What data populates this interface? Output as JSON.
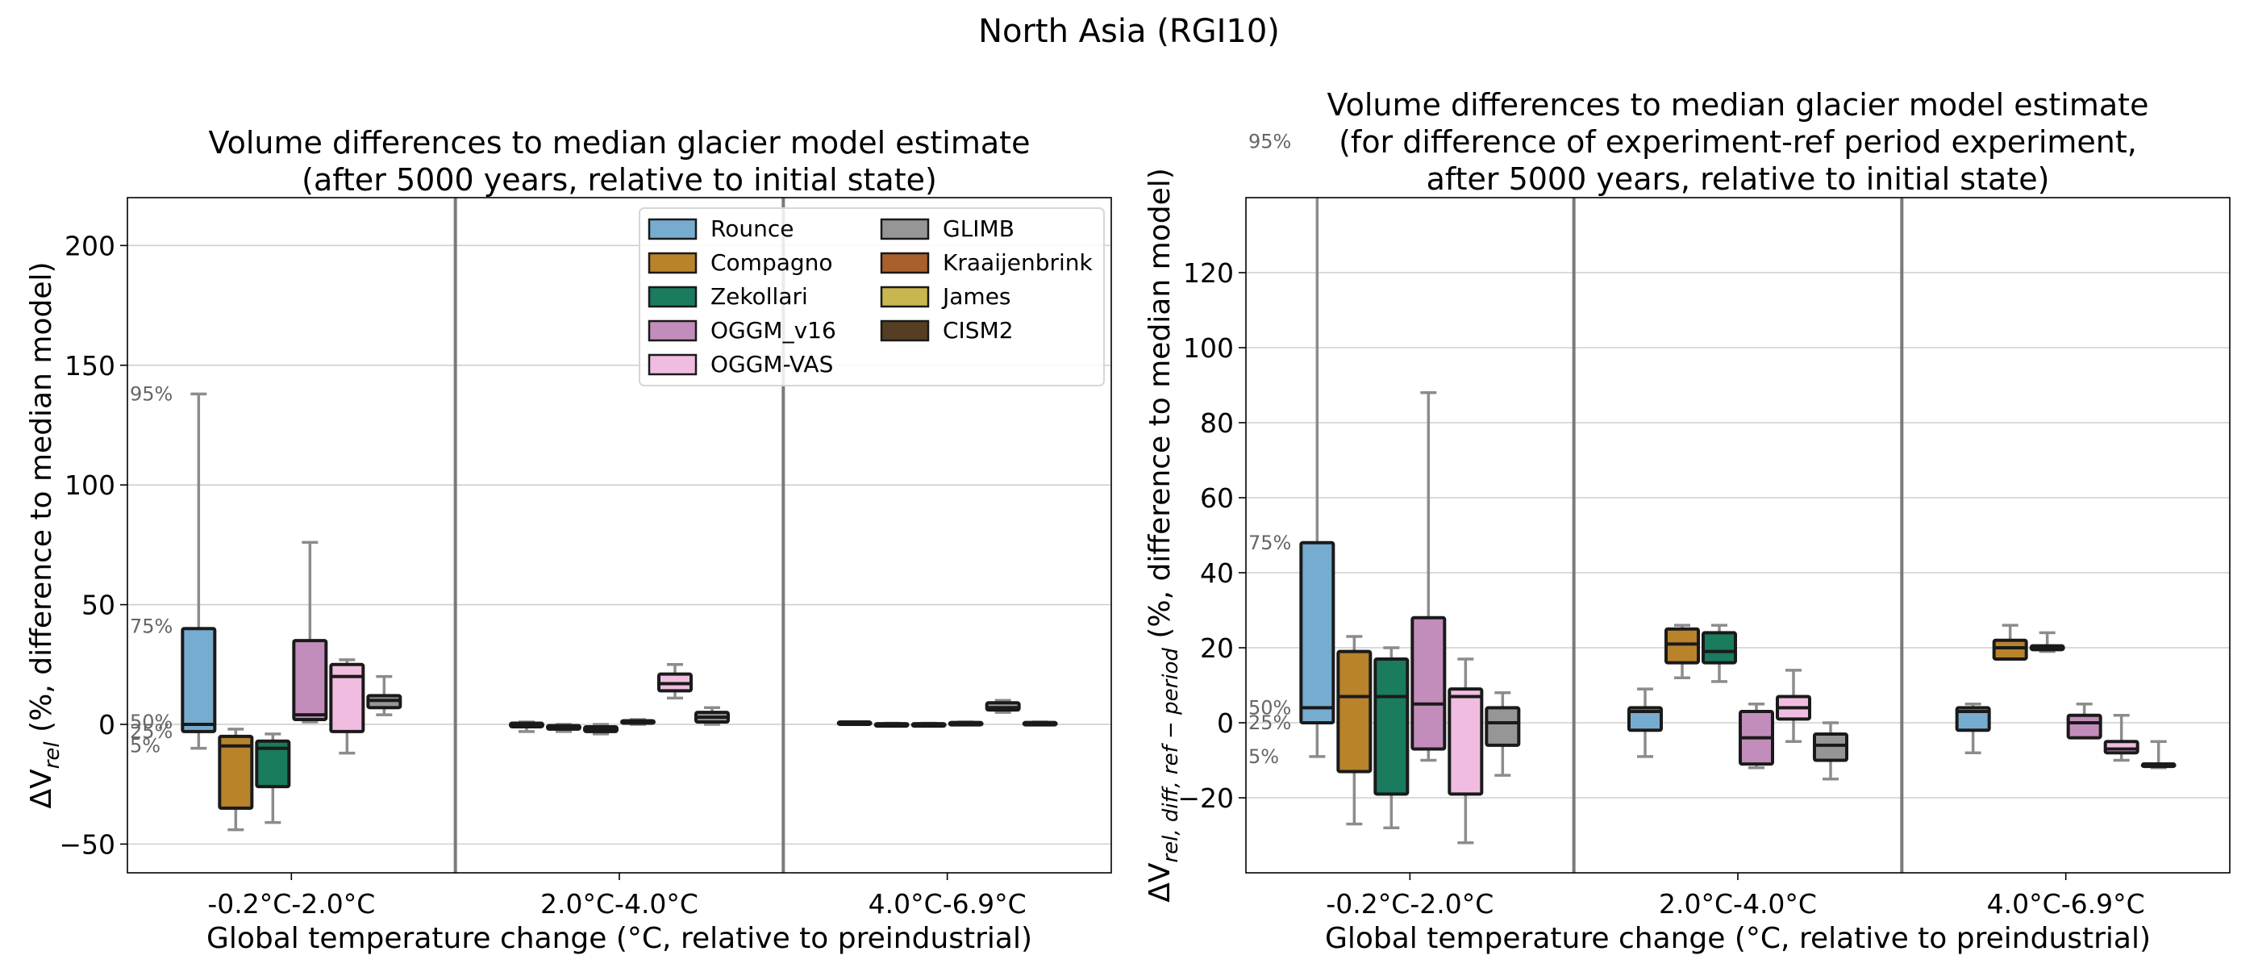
{
  "figure": {
    "suptitle": "North Asia (RGI10)"
  },
  "legend": [
    {
      "name": "Rounce",
      "color": "#76acd0"
    },
    {
      "name": "Compagno",
      "color": "#b8832b"
    },
    {
      "name": "Zekollari",
      "color": "#1a7b5e"
    },
    {
      "name": "OGGM_v16",
      "color": "#c28dbb"
    },
    {
      "name": "OGGM-VAS",
      "color": "#f0bde0"
    },
    {
      "name": "GLIMB",
      "color": "#969696"
    },
    {
      "name": "Kraaijenbrink",
      "color": "#a9602c"
    },
    {
      "name": "James",
      "color": "#c8b74f"
    },
    {
      "name": "CISM2",
      "color": "#553e23"
    }
  ],
  "chart_data": [
    {
      "type": "box",
      "title": "Volume differences to median glacier model estimate\n(after 5000 years, relative to initial state)",
      "xlabel": "Global temperature change (°C, relative to preindustrial)",
      "ylabel_main": "ΔV",
      "ylabel_sub": "rel",
      "ylabel_rest": " (%, difference to median model)",
      "ylim": [
        -62,
        220
      ],
      "yticks": [
        -50,
        0,
        50,
        100,
        150,
        200
      ],
      "grid": "y",
      "categories": [
        "-0.2°C-2.0°C",
        "2.0°C-4.0°C",
        "4.0°C-6.9°C"
      ],
      "percentile_labels": [
        {
          "text": "95%",
          "y": 138
        },
        {
          "text": "75%",
          "y": 41
        },
        {
          "text": "50%",
          "y": 1
        },
        {
          "text": "25%",
          "y": -3
        },
        {
          "text": "5%",
          "y": -9
        }
      ],
      "groups": [
        {
          "category": "-0.2°C-2.0°C",
          "boxes": [
            {
              "model": "Rounce",
              "whislo": -10,
              "q1": -3,
              "med": 0,
              "q3": 40,
              "whishi": 138
            },
            {
              "model": "Compagno",
              "whislo": -44,
              "q1": -35,
              "med": -9,
              "q3": -5,
              "whishi": -2
            },
            {
              "model": "Zekollari",
              "whislo": -41,
              "q1": -26,
              "med": -10,
              "q3": -7,
              "whishi": -4
            },
            {
              "model": "OGGM_v16",
              "whislo": 1,
              "q1": 2,
              "med": 4,
              "q3": 35,
              "whishi": 76
            },
            {
              "model": "OGGM-VAS",
              "whislo": -12,
              "q1": -3,
              "med": 20,
              "q3": 25,
              "whishi": 27
            },
            {
              "model": "GLIMB",
              "whislo": 4,
              "q1": 7,
              "med": 10,
              "q3": 12,
              "whishi": 20
            }
          ]
        },
        {
          "category": "2.0°C-4.0°C",
          "boxes": [
            {
              "model": "Rounce",
              "whislo": -3,
              "q1": -1,
              "med": 0,
              "q3": 0.5,
              "whishi": 1
            },
            {
              "model": "Compagno",
              "whislo": -3,
              "q1": -2,
              "med": -1,
              "q3": -0.5,
              "whishi": 0
            },
            {
              "model": "Zekollari",
              "whislo": -4,
              "q1": -3,
              "med": -2,
              "q3": -1,
              "whishi": 0
            },
            {
              "model": "OGGM_v16",
              "whislo": 0,
              "q1": 0.5,
              "med": 1,
              "q3": 1.5,
              "whishi": 2
            },
            {
              "model": "OGGM-VAS",
              "whislo": 11,
              "q1": 14,
              "med": 17,
              "q3": 21,
              "whishi": 25
            },
            {
              "model": "GLIMB",
              "whislo": 0,
              "q1": 1,
              "med": 3,
              "q3": 5,
              "whishi": 7
            }
          ]
        },
        {
          "category": "4.0°C-6.9°C",
          "boxes": [
            {
              "model": "Rounce",
              "whislo": 0,
              "q1": 0,
              "med": 0.5,
              "q3": 1,
              "whishi": 1
            },
            {
              "model": "Compagno",
              "whislo": -0.5,
              "q1": -0.3,
              "med": 0,
              "q3": 0.3,
              "whishi": 0.5
            },
            {
              "model": "Zekollari",
              "whislo": -0.5,
              "q1": -0.3,
              "med": 0,
              "q3": 0.3,
              "whishi": 0.5
            },
            {
              "model": "OGGM_v16",
              "whislo": 0,
              "q1": 0.2,
              "med": 0.5,
              "q3": 0.8,
              "whishi": 1
            },
            {
              "model": "GLIMB",
              "whislo": 5,
              "q1": 6,
              "med": 7,
              "q3": 9,
              "whishi": 10
            },
            {
              "model": "CISM2",
              "whislo": 0,
              "q1": 0.2,
              "med": 0.5,
              "q3": 0.8,
              "whishi": 1
            }
          ]
        }
      ]
    },
    {
      "type": "box",
      "title": "Volume differences to median glacier model estimate\n(for difference of experiment-ref period experiment,\nafter 5000 years, relative to initial state)",
      "xlabel": "Global temperature change (°C, relative to preindustrial)",
      "ylabel_main": "ΔV",
      "ylabel_sub": "rel, diff, ref − period",
      "ylabel_rest": " (%, difference to median model)",
      "ylim": [
        -40,
        140
      ],
      "yticks": [
        -20,
        0,
        20,
        40,
        60,
        80,
        100,
        120
      ],
      "grid": "y",
      "categories": [
        "-0.2°C-2.0°C",
        "2.0°C-4.0°C",
        "4.0°C-6.9°C"
      ],
      "percentile_labels": [
        {
          "text": "95%",
          "y": 155
        },
        {
          "text": "75%",
          "y": 48
        },
        {
          "text": "50%",
          "y": 4
        },
        {
          "text": "25%",
          "y": 0
        },
        {
          "text": "5%",
          "y": -9
        }
      ],
      "groups": [
        {
          "category": "-0.2°C-2.0°C",
          "boxes": [
            {
              "model": "Rounce",
              "whislo": -9,
              "q1": 0,
              "med": 4,
              "q3": 48,
              "whishi": 155
            },
            {
              "model": "Compagno",
              "whislo": -27,
              "q1": -13,
              "med": 7,
              "q3": 19,
              "whishi": 23
            },
            {
              "model": "Zekollari",
              "whislo": -28,
              "q1": -19,
              "med": 7,
              "q3": 17,
              "whishi": 20
            },
            {
              "model": "OGGM_v16",
              "whislo": -10,
              "q1": -7,
              "med": 5,
              "q3": 28,
              "whishi": 88
            },
            {
              "model": "OGGM-VAS",
              "whislo": -32,
              "q1": -19,
              "med": 7,
              "q3": 9,
              "whishi": 17
            },
            {
              "model": "GLIMB",
              "whislo": -14,
              "q1": -6,
              "med": 0,
              "q3": 4,
              "whishi": 8
            }
          ]
        },
        {
          "category": "2.0°C-4.0°C",
          "boxes": [
            {
              "model": "Rounce",
              "whislo": -9,
              "q1": -2,
              "med": 3,
              "q3": 4,
              "whishi": 9
            },
            {
              "model": "Compagno",
              "whislo": 12,
              "q1": 16,
              "med": 21,
              "q3": 25,
              "whishi": 26
            },
            {
              "model": "Zekollari",
              "whislo": 11,
              "q1": 16,
              "med": 19,
              "q3": 24,
              "whishi": 26
            },
            {
              "model": "OGGM_v16",
              "whislo": -12,
              "q1": -11,
              "med": -4,
              "q3": 3,
              "whishi": 5
            },
            {
              "model": "OGGM-VAS",
              "whislo": -5,
              "q1": 1,
              "med": 4,
              "q3": 7,
              "whishi": 14
            },
            {
              "model": "GLIMB",
              "whislo": -15,
              "q1": -10,
              "med": -6,
              "q3": -3,
              "whishi": 0
            }
          ]
        },
        {
          "category": "4.0°C-6.9°C",
          "boxes": [
            {
              "model": "Rounce",
              "whislo": -8,
              "q1": -2,
              "med": 3,
              "q3": 4,
              "whishi": 5
            },
            {
              "model": "Compagno",
              "whislo": 17,
              "q1": 17,
              "med": 20,
              "q3": 22,
              "whishi": 26
            },
            {
              "model": "Zekollari",
              "whislo": 19,
              "q1": 19.5,
              "med": 20,
              "q3": 20.5,
              "whishi": 24
            },
            {
              "model": "OGGM_v16",
              "whislo": -4,
              "q1": -4,
              "med": 0,
              "q3": 2,
              "whishi": 5
            },
            {
              "model": "OGGM-VAS",
              "whislo": -10,
              "q1": -8,
              "med": -7,
              "q3": -5,
              "whishi": 2
            },
            {
              "model": "GLIMB",
              "whislo": -12,
              "q1": -11.5,
              "med": -11,
              "q3": -11,
              "whishi": -5
            }
          ]
        }
      ]
    }
  ]
}
